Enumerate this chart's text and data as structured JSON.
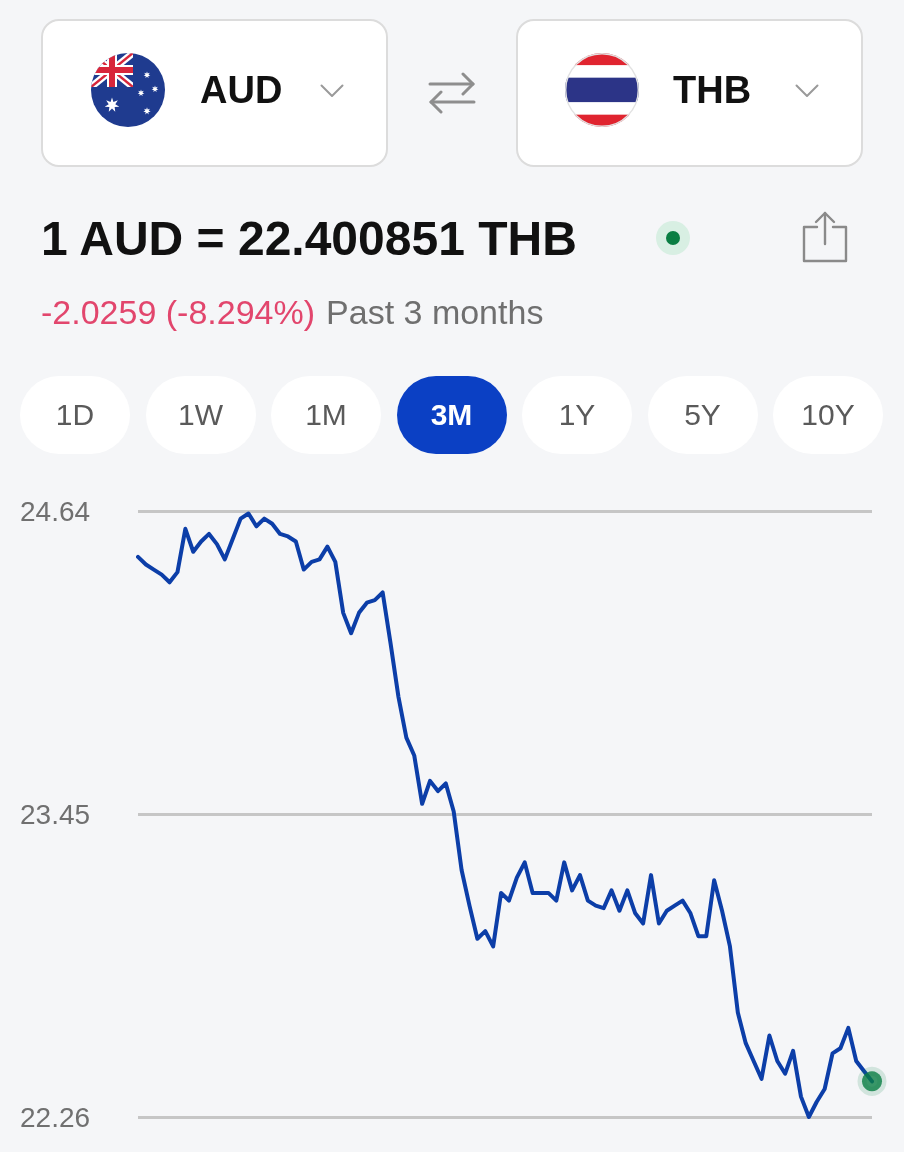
{
  "chart_data": {
    "type": "line",
    "title": "1 AUD = 22.400851 THB",
    "annotations": [
      "AUD",
      "THB",
      "-2.0259 (-8.294%)",
      "Past 3 months",
      "1D",
      "1W",
      "1M",
      "3M",
      "1Y",
      "5Y",
      "10Y"
    ],
    "categories": [
      null,
      null,
      null,
      null,
      null,
      null,
      null,
      null,
      null,
      null,
      null,
      null,
      null,
      null,
      null,
      null,
      null,
      null,
      null,
      null,
      null,
      null,
      null,
      null,
      null,
      null,
      null,
      null,
      null,
      null,
      null,
      null,
      null,
      null,
      null,
      null,
      null,
      null,
      null,
      null,
      null,
      null,
      null,
      null,
      null,
      null,
      null,
      null,
      null,
      null,
      null,
      null,
      null,
      null,
      null,
      null,
      null,
      null,
      null,
      null,
      null,
      null,
      null,
      null,
      null,
      null,
      null,
      null,
      null,
      null,
      null,
      null,
      null,
      null,
      null,
      null,
      null,
      null,
      null,
      null,
      null,
      null,
      null,
      null,
      null,
      null,
      null,
      null,
      null,
      null,
      null,
      null,
      null,
      null
    ],
    "series": [
      {
        "color": "#0c3ea8",
        "marker": "none",
        "values": [
          24.46,
          24.43,
          24.41,
          24.39,
          24.36,
          24.4,
          24.57,
          24.48,
          24.52,
          24.55,
          24.51,
          24.45,
          24.53,
          24.61,
          24.63,
          24.58,
          24.61,
          24.59,
          24.55,
          24.54,
          24.52,
          24.41,
          24.44,
          24.45,
          24.5,
          24.44,
          24.24,
          24.16,
          24.24,
          24.28,
          24.29,
          24.32,
          24.12,
          23.91,
          23.75,
          23.68,
          23.49,
          23.58,
          23.54,
          23.57,
          23.46,
          23.23,
          23.09,
          22.96,
          22.99,
          22.93,
          23.14,
          23.11,
          23.2,
          23.26,
          23.14,
          23.14,
          23.14,
          23.11,
          23.26,
          23.15,
          23.21,
          23.11,
          23.09,
          23.08,
          23.15,
          23.07,
          23.15,
          23.06,
          23.02,
          23.21,
          23.02,
          23.07,
          23.09,
          23.11,
          23.06,
          22.97,
          22.97,
          23.19,
          23.07,
          22.93,
          22.67,
          22.55,
          22.48,
          22.41,
          22.58,
          22.48,
          22.43,
          22.52,
          22.34,
          22.26,
          22.32,
          22.37,
          22.51,
          22.53,
          22.61,
          22.48,
          22.44,
          22.4
        ]
      },
      {
        "type": "scatter",
        "color": "#0a7e43",
        "marker": "circle",
        "values": [
          null,
          null,
          null,
          null,
          null,
          null,
          null,
          null,
          null,
          null,
          null,
          null,
          null,
          null,
          null,
          null,
          null,
          null,
          null,
          null,
          null,
          null,
          null,
          null,
          null,
          null,
          null,
          null,
          null,
          null,
          null,
          null,
          null,
          null,
          null,
          null,
          null,
          null,
          null,
          null,
          null,
          null,
          null,
          null,
          null,
          null,
          null,
          null,
          null,
          null,
          null,
          null,
          null,
          null,
          null,
          null,
          null,
          null,
          null,
          null,
          null,
          null,
          null,
          null,
          null,
          null,
          null,
          null,
          null,
          null,
          null,
          null,
          null,
          null,
          null,
          null,
          null,
          null,
          null,
          null,
          null,
          null,
          null,
          null,
          null,
          null,
          null,
          null,
          null,
          null,
          null,
          null,
          null,
          22.4
        ]
      }
    ],
    "ylim": [
      22.26,
      24.64
    ],
    "yticks": [
      22.26,
      23.45,
      24.64
    ],
    "grid": "y",
    "tick_labels": "y"
  }
}
